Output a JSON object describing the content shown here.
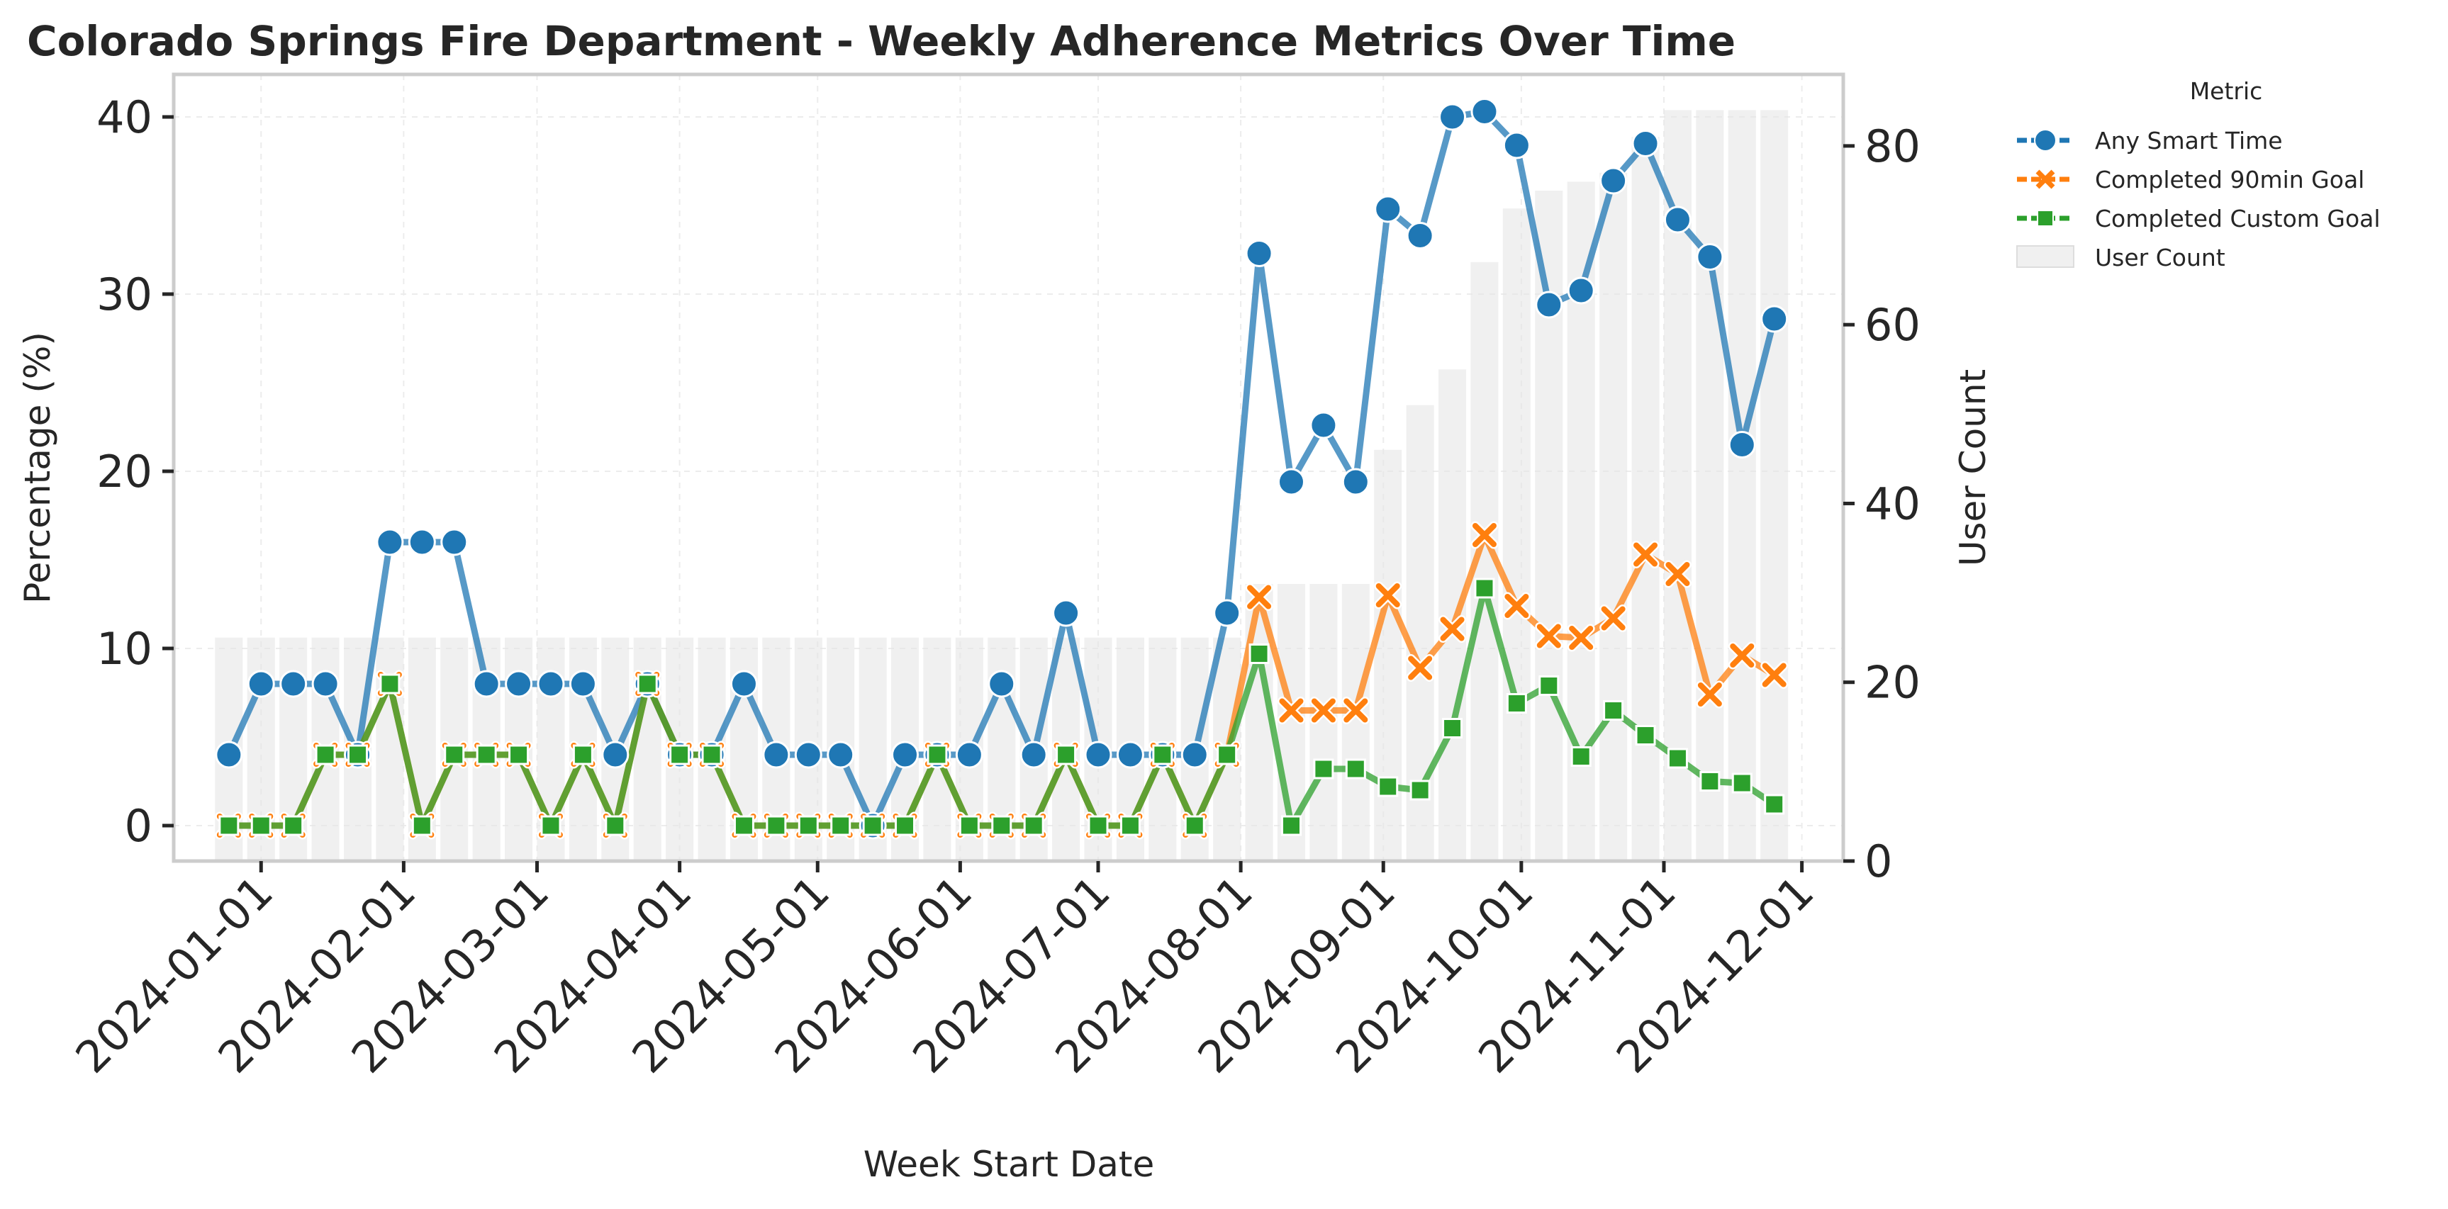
{
  "chart_data": {
    "type": "line",
    "title": "Colorado Springs Fire Department - Weekly Adherence Metrics Over Time",
    "xlabel": "Week Start Date",
    "ylabel": "Percentage (%)",
    "ylabel_right": "User Count",
    "ylim": [
      -2,
      42.4
    ],
    "ylim_right": [
      0,
      88
    ],
    "yticks": [
      0,
      10,
      20,
      30,
      40
    ],
    "yticks_right": [
      0,
      20,
      40,
      60,
      80
    ],
    "x_tick_labels": [
      "2024-01-01",
      "2024-02-01",
      "2024-03-01",
      "2024-04-01",
      "2024-05-01",
      "2024-06-01",
      "2024-07-01",
      "2024-08-01",
      "2024-09-01",
      "2024-10-01",
      "2024-11-01",
      "2024-12-01"
    ],
    "xlim": [
      "2023-12-13",
      "2024-12-10"
    ],
    "grid": true,
    "legend": {
      "title": "Metric",
      "position": "outside-right"
    },
    "dates": [
      "2023-12-25",
      "2024-01-01",
      "2024-01-08",
      "2024-01-15",
      "2024-01-22",
      "2024-01-29",
      "2024-02-05",
      "2024-02-12",
      "2024-02-19",
      "2024-02-26",
      "2024-03-04",
      "2024-03-11",
      "2024-03-18",
      "2024-03-25",
      "2024-04-01",
      "2024-04-08",
      "2024-04-15",
      "2024-04-22",
      "2024-04-29",
      "2024-05-06",
      "2024-05-13",
      "2024-05-20",
      "2024-05-27",
      "2024-06-03",
      "2024-06-10",
      "2024-06-17",
      "2024-06-24",
      "2024-07-01",
      "2024-07-08",
      "2024-07-15",
      "2024-07-22",
      "2024-07-29",
      "2024-08-05",
      "2024-08-12",
      "2024-08-19",
      "2024-08-26",
      "2024-09-02",
      "2024-09-09",
      "2024-09-16",
      "2024-09-23",
      "2024-09-30",
      "2024-10-07",
      "2024-10-14",
      "2024-10-21",
      "2024-10-28",
      "2024-11-04",
      "2024-11-11",
      "2024-11-18",
      "2024-11-25"
    ],
    "series": [
      {
        "name": "Any Smart Time",
        "color": "#1f77b4",
        "marker": "circle",
        "values": [
          4,
          8,
          8,
          8,
          4,
          16,
          16,
          16,
          8,
          8,
          8,
          8,
          4,
          8,
          4,
          4,
          8,
          4,
          4,
          4,
          0,
          4,
          4,
          4,
          8,
          4,
          12,
          4,
          4,
          4,
          4,
          12,
          32.3,
          19.4,
          22.6,
          19.4,
          34.8,
          33.3,
          40,
          40.3,
          38.4,
          29.4,
          30.2,
          36.4,
          38.5,
          34.2,
          32.1,
          21.5,
          28.6
        ]
      },
      {
        "name": "Completed 90min Goal",
        "color": "#ff7f0e",
        "marker": "x",
        "values": [
          0,
          0,
          0,
          4,
          4,
          8,
          0,
          4,
          4,
          4,
          0,
          4,
          0,
          8,
          4,
          4,
          0,
          0,
          0,
          0,
          0,
          0,
          4,
          0,
          0,
          0,
          4,
          0,
          0,
          4,
          0,
          4,
          12.9,
          6.5,
          6.5,
          6.5,
          13,
          8.9,
          11.1,
          16.4,
          12.4,
          10.7,
          10.6,
          11.7,
          15.3,
          14.2,
          7.4,
          9.6,
          8.5
        ]
      },
      {
        "name": "Completed Custom Goal",
        "color": "#2ca02c",
        "marker": "square",
        "values": [
          0,
          0,
          0,
          4,
          4,
          8,
          0,
          4,
          4,
          4,
          0,
          4,
          0,
          8,
          4,
          4,
          0,
          0,
          0,
          0,
          0,
          0,
          4,
          0,
          0,
          0,
          4,
          0,
          0,
          4,
          0,
          4,
          9.7,
          0,
          3.2,
          3.2,
          2.2,
          2,
          5.5,
          13.4,
          6.9,
          7.9,
          3.9,
          6.5,
          5.1,
          3.8,
          2.5,
          2.4,
          1.2
        ]
      },
      {
        "name": "User Count",
        "color": "#e6e6e6",
        "type": "bar",
        "axis": "right",
        "values": [
          25,
          25,
          25,
          25,
          25,
          25,
          25,
          25,
          25,
          25,
          25,
          25,
          25,
          25,
          25,
          25,
          25,
          25,
          25,
          25,
          25,
          25,
          25,
          25,
          25,
          25,
          25,
          25,
          25,
          25,
          25,
          25,
          31,
          31,
          31,
          31,
          46,
          51,
          55,
          67,
          73,
          75,
          76,
          77,
          81,
          84,
          84,
          84,
          84
        ]
      }
    ]
  }
}
